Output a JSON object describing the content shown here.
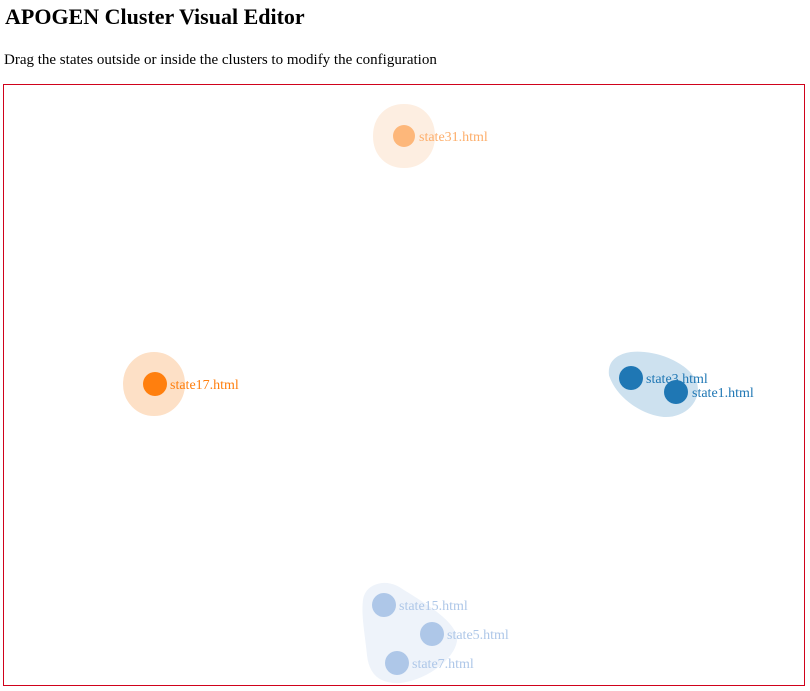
{
  "header": {
    "title": "APOGEN Cluster Visual Editor",
    "instructions": "Drag the states outside or inside the clusters to modify the configuration"
  },
  "clusters": [
    {
      "id": "cluster-state31",
      "hull_color": "#fdeee1",
      "node_color": "#fdb77a",
      "label_color": "#fdae6b",
      "states": [
        {
          "label": "state31.html"
        }
      ]
    },
    {
      "id": "cluster-state17",
      "hull_color": "#fde0c6",
      "node_color": "#ff7f0e",
      "label_color": "#ff7f0e",
      "states": [
        {
          "label": "state17.html"
        }
      ]
    },
    {
      "id": "cluster-state3-state1",
      "hull_color": "#cde1ef",
      "node_color": "#1f77b4",
      "label_color": "#1f77b4",
      "states": [
        {
          "label": "state3.html"
        },
        {
          "label": "state1.html"
        }
      ]
    },
    {
      "id": "cluster-state15-state5-state7",
      "hull_color": "#eef3fa",
      "node_color": "#aec7e8",
      "label_color": "#aec7e8",
      "states": [
        {
          "label": "state15.html"
        },
        {
          "label": "state5.html"
        },
        {
          "label": "state7.html"
        }
      ]
    }
  ],
  "colors": {
    "canvas_border": "#d0021b"
  }
}
